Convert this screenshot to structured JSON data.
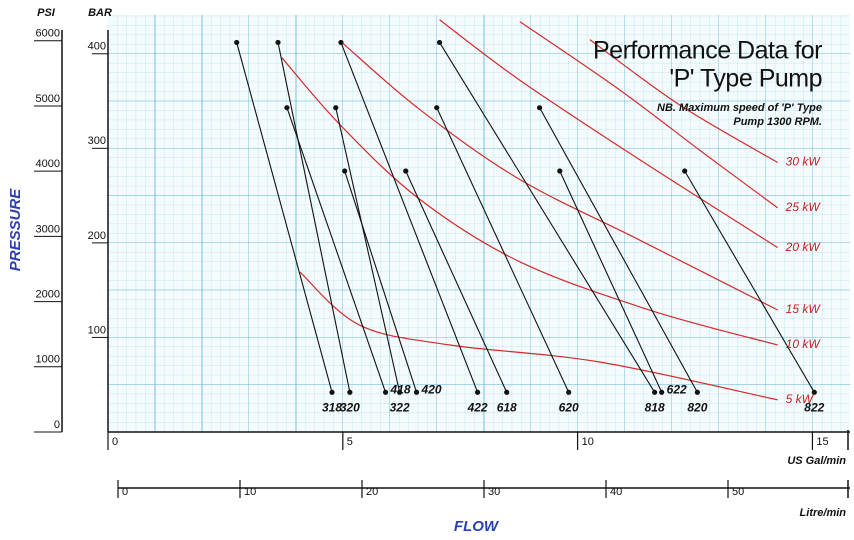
{
  "chart_data": {
    "type": "line",
    "title": [
      "Performance Data for",
      "'P' Type Pump"
    ],
    "note": [
      "NB. Maximum speed of 'P' Type",
      "Pump 1300 RPM."
    ],
    "ylabel": "PRESSURE",
    "xlabel": "FLOW",
    "y_unit": "BAR",
    "y2_unit": "PSI",
    "x_unit": "US Gal/min",
    "x2_unit": "Litre/min",
    "xlim": [
      0,
      15.8
    ],
    "xticks": [
      0,
      5,
      10,
      15
    ],
    "x2lim": [
      0,
      60
    ],
    "x2ticks": [
      0,
      10,
      20,
      30,
      40,
      50
    ],
    "ylim": [
      0,
      441
    ],
    "yticks": [
      100,
      200,
      300,
      400
    ],
    "y2lim": [
      0,
      6395
    ],
    "y2ticks": [
      0,
      1000,
      2000,
      3000,
      4000,
      5000,
      6000
    ],
    "grid": true,
    "series": [
      {
        "name": "318",
        "color": "#111111",
        "x": [
          2.74,
          4.77
        ],
        "values": [
          412,
          42
        ]
      },
      {
        "name": "320",
        "color": "#111111",
        "x": [
          3.62,
          5.15
        ],
        "values": [
          412,
          42
        ]
      },
      {
        "name": "418",
        "color": "#111111",
        "x": [
          3.81,
          5.91
        ],
        "values": [
          343,
          42
        ]
      },
      {
        "name": "322",
        "color": "#111111",
        "x": [
          4.85,
          6.21
        ],
        "values": [
          343,
          42
        ]
      },
      {
        "name": "420",
        "color": "#111111",
        "x": [
          5.04,
          6.57
        ],
        "values": [
          276,
          42
        ]
      },
      {
        "name": "422",
        "color": "#111111",
        "x": [
          4.96,
          7.87
        ],
        "values": [
          412,
          42
        ]
      },
      {
        "name": "618",
        "color": "#111111",
        "x": [
          6.34,
          8.49
        ],
        "values": [
          276,
          42
        ]
      },
      {
        "name": "620",
        "color": "#111111",
        "x": [
          7.0,
          9.81
        ],
        "values": [
          343,
          42
        ]
      },
      {
        "name": "818",
        "color": "#111111",
        "x": [
          7.06,
          11.64
        ],
        "values": [
          412,
          42
        ]
      },
      {
        "name": "622",
        "color": "#111111",
        "x": [
          9.62,
          11.79
        ],
        "values": [
          276,
          42
        ]
      },
      {
        "name": "820",
        "color": "#111111",
        "x": [
          9.19,
          12.55
        ],
        "values": [
          343,
          42
        ]
      },
      {
        "name": "822",
        "color": "#111111",
        "x": [
          12.28,
          15.04
        ],
        "values": [
          276,
          42
        ]
      }
    ],
    "power_curves": [
      {
        "name": "5 kW",
        "color": "#d42a2a",
        "x": [
          4.09,
          5.36,
          7.28,
          10.47,
          14.26
        ],
        "values": [
          169,
          113,
          92,
          74,
          34
        ]
      },
      {
        "name": "10 kW",
        "color": "#d42a2a",
        "x": [
          3.7,
          4.94,
          6.64,
          8.77,
          11.53,
          14.26
        ],
        "values": [
          396,
          325,
          246,
          180,
          129,
          92
        ]
      },
      {
        "name": "15 kW",
        "color": "#d42a2a",
        "x": [
          4.98,
          6.64,
          8.77,
          11.32,
          14.26
        ],
        "values": [
          412,
          341,
          267,
          203,
          129
        ]
      },
      {
        "name": "20 kW",
        "color": "#d42a2a",
        "x": [
          7.06,
          8.77,
          11.32,
          14.26
        ],
        "values": [
          436,
          372,
          288,
          195
        ]
      },
      {
        "name": "25 kW",
        "color": "#d42a2a",
        "x": [
          8.77,
          10.89,
          12.6,
          14.26
        ],
        "values": [
          434,
          362,
          298,
          237
        ]
      },
      {
        "name": "30 kW",
        "color": "#d42a2a",
        "x": [
          10.26,
          12.17,
          14.26
        ],
        "values": [
          415,
          346,
          285
        ]
      }
    ]
  }
}
